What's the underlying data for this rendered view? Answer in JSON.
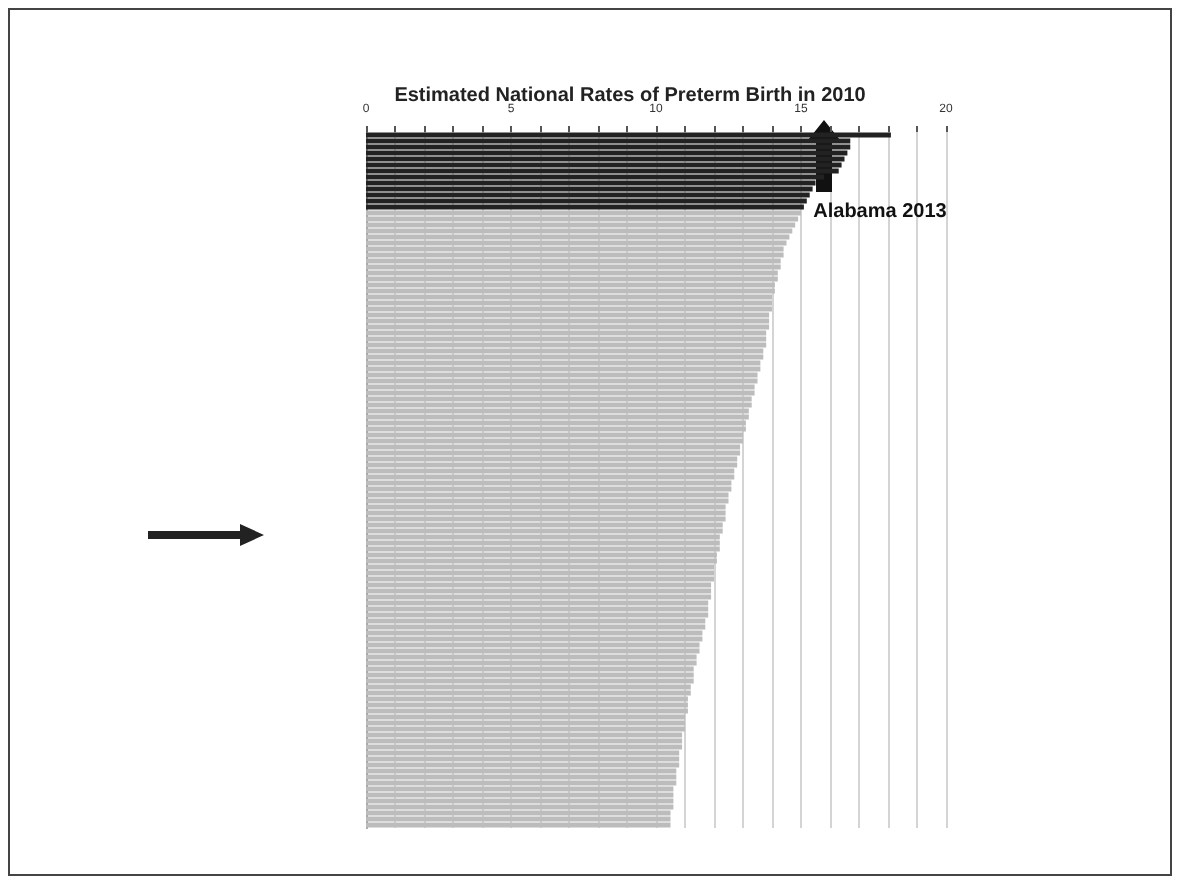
{
  "chart_data": {
    "type": "bar",
    "orientation": "horizontal",
    "title": "Estimated National Rates of Preterm Birth in 2010",
    "categories": [
      null,
      null,
      null,
      null,
      null,
      null,
      null,
      null,
      null,
      null,
      null,
      null,
      null,
      null,
      null,
      null,
      null,
      null,
      null,
      null,
      null,
      null,
      null,
      null,
      null,
      null,
      null,
      null,
      null,
      null,
      null,
      null,
      null,
      null,
      null,
      null,
      null,
      null,
      null,
      null,
      null,
      null,
      null,
      null,
      null,
      null,
      null,
      null,
      null,
      null,
      null,
      null,
      null,
      null,
      null,
      null,
      null,
      null,
      null,
      null,
      null,
      null,
      null,
      null,
      null,
      null,
      null,
      null,
      null,
      null,
      null,
      null,
      null,
      null,
      null,
      null,
      null,
      null,
      null,
      null,
      null,
      null,
      null,
      null,
      null,
      null,
      null,
      null,
      null,
      null,
      null,
      null,
      null,
      null,
      null,
      null,
      null,
      null,
      null,
      null,
      null,
      null,
      null,
      null,
      null,
      null,
      null,
      null,
      null,
      null,
      null,
      null,
      null,
      null,
      null,
      null
    ],
    "values": [
      18.1,
      16.7,
      16.7,
      16.6,
      16.5,
      16.4,
      16.3,
      15.8,
      15.5,
      15.4,
      15.3,
      15.2,
      15.1,
      15.0,
      14.9,
      14.8,
      14.7,
      14.6,
      14.5,
      14.4,
      14.4,
      14.3,
      14.3,
      14.2,
      14.2,
      14.1,
      14.1,
      14.0,
      14.0,
      14.0,
      13.9,
      13.9,
      13.9,
      13.8,
      13.8,
      13.8,
      13.7,
      13.7,
      13.6,
      13.6,
      13.5,
      13.5,
      13.4,
      13.4,
      13.3,
      13.3,
      13.2,
      13.2,
      13.1,
      13.1,
      13.0,
      13.0,
      12.9,
      12.9,
      12.8,
      12.8,
      12.7,
      12.7,
      12.6,
      12.6,
      12.5,
      12.5,
      12.4,
      12.4,
      12.4,
      12.3,
      12.3,
      12.2,
      12.2,
      12.2,
      12.1,
      12.1,
      12.0,
      12.0,
      12.0,
      11.9,
      11.9,
      11.9,
      11.8,
      11.8,
      11.8,
      11.7,
      11.7,
      11.6,
      11.6,
      11.5,
      11.5,
      11.4,
      11.4,
      11.3,
      11.3,
      11.3,
      11.2,
      11.2,
      11.1,
      11.1,
      11.1,
      11.0,
      11.0,
      11.0,
      10.9,
      10.9,
      10.9,
      10.8,
      10.8,
      10.8,
      10.7,
      10.7,
      10.7,
      10.6,
      10.6,
      10.6,
      10.6,
      10.5,
      10.5,
      10.5
    ],
    "colors": [
      "#222222",
      "#222222",
      "#222222",
      "#222222",
      "#222222",
      "#222222",
      "#222222",
      "#222222",
      "#222222",
      "#222222",
      "#222222",
      "#222222",
      "#222222",
      "#bcbcbc",
      "#bcbcbc",
      "#bcbcbc",
      "#bcbcbc",
      "#bcbcbc",
      "#bcbcbc",
      "#bcbcbc",
      "#bcbcbc",
      "#bcbcbc",
      "#bcbcbc",
      "#bcbcbc",
      "#bcbcbc",
      "#bcbcbc",
      "#bcbcbc",
      "#bcbcbc",
      "#bcbcbc",
      "#bcbcbc",
      "#bcbcbc",
      "#bcbcbc",
      "#bcbcbc",
      "#bcbcbc",
      "#bcbcbc",
      "#bcbcbc",
      "#bcbcbc",
      "#bcbcbc",
      "#bcbcbc",
      "#bcbcbc",
      "#bcbcbc",
      "#bcbcbc",
      "#bcbcbc",
      "#bcbcbc",
      "#bcbcbc",
      "#bcbcbc",
      "#bcbcbc",
      "#bcbcbc",
      "#bcbcbc",
      "#bcbcbc",
      "#bcbcbc",
      "#bcbcbc",
      "#bcbcbc",
      "#bcbcbc",
      "#bcbcbc",
      "#bcbcbc",
      "#bcbcbc",
      "#bcbcbc",
      "#bcbcbc",
      "#bcbcbc",
      "#bcbcbc",
      "#bcbcbc",
      "#bcbcbc",
      "#bcbcbc",
      "#bcbcbc",
      "#bcbcbc",
      "#bcbcbc",
      "#bcbcbc",
      "#bcbcbc",
      "#bcbcbc",
      "#bcbcbc",
      "#bcbcbc",
      "#bcbcbc",
      "#bcbcbc",
      "#bcbcbc",
      "#bcbcbc",
      "#bcbcbc",
      "#bcbcbc",
      "#bcbcbc",
      "#bcbcbc",
      "#bcbcbc",
      "#bcbcbc",
      "#bcbcbc",
      "#bcbcbc",
      "#bcbcbc",
      "#bcbcbc",
      "#bcbcbc",
      "#bcbcbc",
      "#bcbcbc",
      "#bcbcbc",
      "#bcbcbc",
      "#bcbcbc",
      "#bcbcbc",
      "#bcbcbc",
      "#bcbcbc",
      "#bcbcbc",
      "#bcbcbc",
      "#bcbcbc",
      "#bcbcbc",
      "#bcbcbc",
      "#bcbcbc",
      "#bcbcbc",
      "#bcbcbc",
      "#bcbcbc",
      "#bcbcbc",
      "#bcbcbc",
      "#bcbcbc",
      "#bcbcbc",
      "#bcbcbc",
      "#bcbcbc",
      "#bcbcbc",
      "#bcbcbc",
      "#bcbcbc",
      "#bcbcbc",
      "#bcbcbc",
      "#bcbcbc"
    ],
    "xlim": [
      0,
      20
    ],
    "xticks": [
      0,
      {
        "value": 1,
        "label": null
      },
      {
        "value": 2,
        "label": null
      },
      {
        "value": 3,
        "label": null
      },
      {
        "value": 4,
        "label": null
      },
      5,
      {
        "value": 6,
        "label": null
      },
      {
        "value": 7,
        "label": null
      },
      {
        "value": 8,
        "label": null
      },
      {
        "value": 9,
        "label": null
      },
      10,
      {
        "value": 11,
        "label": null
      },
      {
        "value": 12,
        "label": null
      },
      {
        "value": 13,
        "label": null
      },
      {
        "value": 14,
        "label": null
      },
      15,
      {
        "value": 16,
        "label": null
      },
      {
        "value": 17,
        "label": null
      },
      {
        "value": 18,
        "label": null
      },
      {
        "value": 19,
        "label": null
      },
      20
    ],
    "grid": "x",
    "annotations": [
      "Alabama 2013"
    ]
  }
}
